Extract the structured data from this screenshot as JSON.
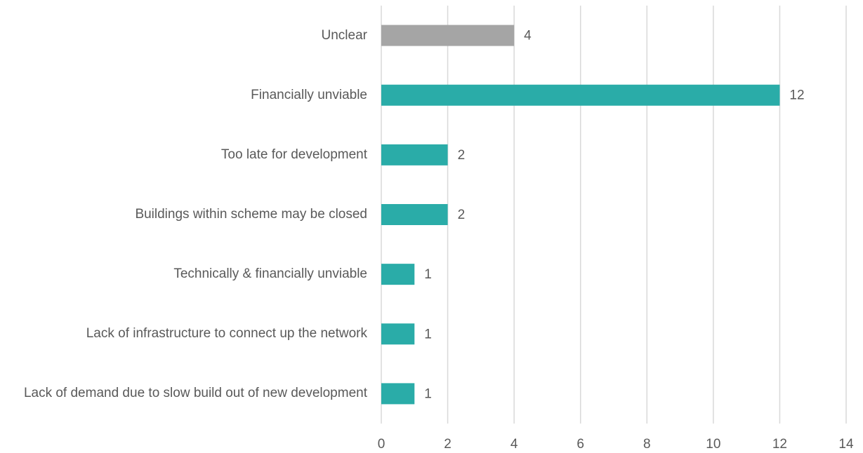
{
  "chart_data": {
    "type": "bar",
    "orientation": "horizontal",
    "categories": [
      "Unclear",
      "Financially unviable",
      "Too late for development",
      "Buildings within scheme may be closed",
      "Technically & financially unviable",
      "Lack of infrastructure to connect up the network",
      "Lack of demand due to slow build out of new development"
    ],
    "values": [
      4,
      12,
      2,
      2,
      1,
      1,
      1
    ],
    "colors": [
      "#a5a5a5",
      "#2aaca8",
      "#2aaca8",
      "#2aaca8",
      "#2aaca8",
      "#2aaca8",
      "#2aaca8"
    ],
    "xlim": [
      0,
      14
    ],
    "xticks": [
      0,
      2,
      4,
      6,
      8,
      10,
      12,
      14
    ],
    "grid": true
  }
}
